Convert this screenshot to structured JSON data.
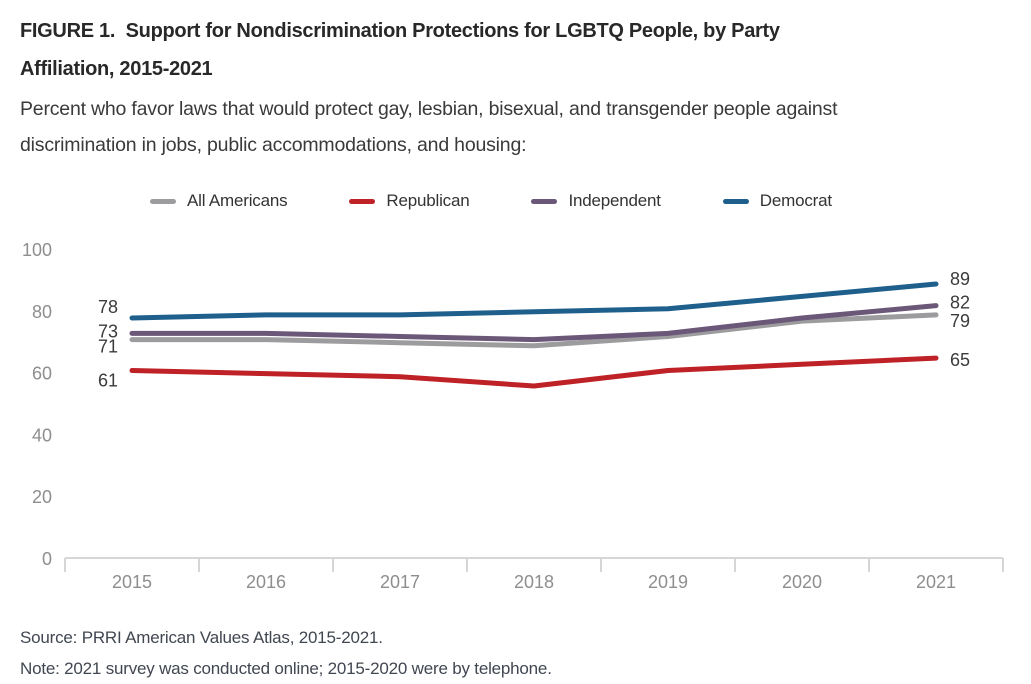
{
  "header": {
    "title_line1": "FIGURE 1.  Support for Nondiscrimination Protections for LGBTQ People, by Party",
    "title_line2": "Affiliation, 2015-2021",
    "subtitle_line1": "Percent who favor laws that would protect gay, lesbian, bisexual, and transgender people against",
    "subtitle_line2": "discrimination in jobs, public accommodations, and housing:"
  },
  "chart_data": {
    "type": "line",
    "title": "Support for Nondiscrimination Protections for LGBTQ People, by Party Affiliation, 2015-2021",
    "categories": [
      "2015",
      "2016",
      "2017",
      "2018",
      "2019",
      "2020",
      "2021"
    ],
    "series": [
      {
        "name": "All Americans",
        "color": "#9C9C9E",
        "values": [
          71,
          71,
          70,
          69,
          72,
          77,
          79
        ]
      },
      {
        "name": "Republican",
        "color": "#BE2126",
        "values": [
          61,
          60,
          59,
          56,
          61,
          63,
          65
        ]
      },
      {
        "name": "Independent",
        "color": "#6B5778",
        "values": [
          73,
          73,
          72,
          71,
          73,
          78,
          82
        ]
      },
      {
        "name": "Democrat",
        "color": "#1E5F8C",
        "values": [
          78,
          79,
          79,
          80,
          81,
          85,
          89
        ]
      }
    ],
    "endpoint_labels": {
      "left": {
        "All Americans": "71",
        "Republican": "61",
        "Independent": "73",
        "Democrat": "78"
      },
      "right": {
        "All Americans": "79",
        "Republican": "65",
        "Independent": "82",
        "Democrat": "89"
      }
    },
    "ylim": [
      0,
      100
    ],
    "yticks": [
      100,
      80,
      60,
      40,
      20,
      0
    ],
    "grid": false,
    "legend_position": "top"
  },
  "footer": {
    "source": "Source: PRRI American Values Atlas, 2015-2021.",
    "note": "Note: 2021 survey was conducted online; 2015-2020 were by telephone."
  },
  "colors": {
    "axis_line": "#D6D6D6",
    "axis_text": "#8E8E8E",
    "value_label_text": "#3B3B3B"
  }
}
